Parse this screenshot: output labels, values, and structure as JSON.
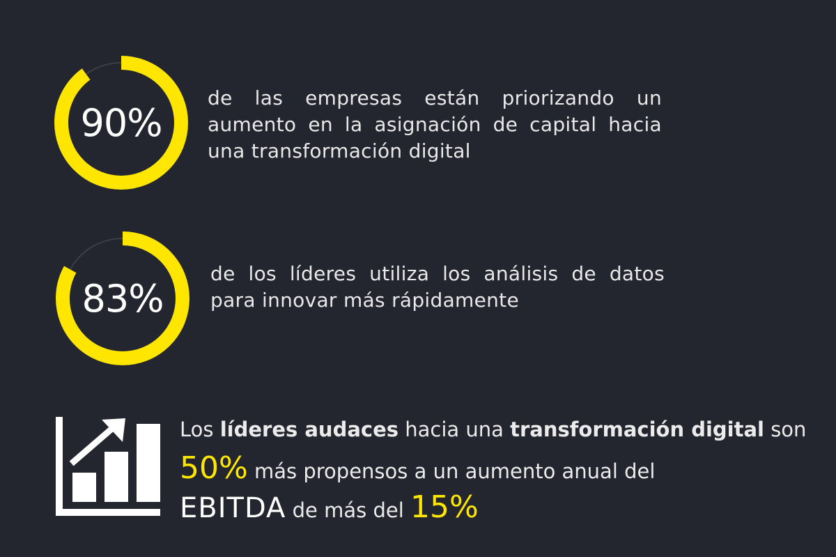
{
  "colors": {
    "background": "#23262e",
    "accent_yellow": "#ffe600",
    "text": "#e9e9ea",
    "ring_track": "#3b3e46"
  },
  "stats": [
    {
      "value": "90%",
      "percent": 90,
      "text": "de las empresas están priorizando un aumento en la asignación de capital hacia una transformación digital"
    },
    {
      "value": "83%",
      "percent": 83,
      "text": "de los líderes utiliza los análisis de datos para innovar más rápidamente"
    }
  ],
  "highlight": {
    "icon": "bar-chart-growth-icon",
    "line1": {
      "part1": "Los ",
      "bold1": "líderes audaces",
      "part2": " hacia una ",
      "bold2": "transformación digital",
      "part3": " son"
    },
    "line2": {
      "percent": "50%",
      "text": " más propensos a un aumento anual del"
    },
    "line3": {
      "metric": "EBITDA",
      "text": " de más del ",
      "percent": "15%"
    }
  }
}
